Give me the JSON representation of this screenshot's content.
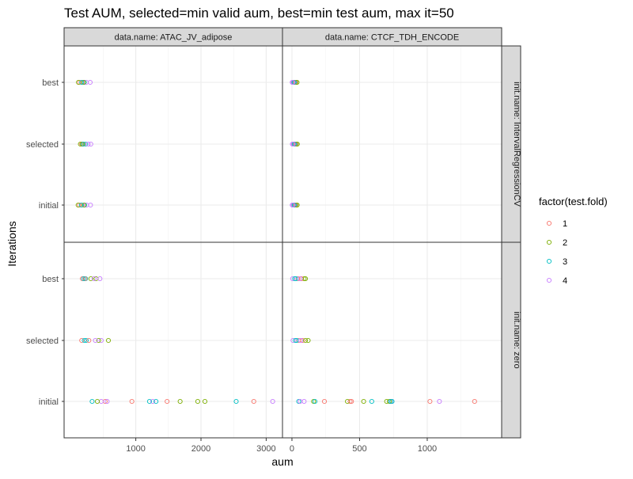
{
  "chart_data": {
    "type": "scatter",
    "title": "Test AUM, selected=min valid aum, best=min test aum, max it=50",
    "xlabel": "aum",
    "ylabel": "Iterations",
    "categories_y": [
      "initial",
      "selected",
      "best"
    ],
    "legend": {
      "title": "factor(test.fold)",
      "placement": "right",
      "items": [
        {
          "label": "1",
          "color": "#F8766D"
        },
        {
          "label": "2",
          "color": "#7CAE00"
        },
        {
          "label": "3",
          "color": "#00BFC4"
        },
        {
          "label": "4",
          "color": "#C77CFF"
        }
      ]
    },
    "grid": true,
    "columns": [
      {
        "label": "data.name: ATAC_JV_adipose",
        "xlim": [
          -100,
          3250
        ],
        "ticks": [
          1000,
          2000,
          3000
        ],
        "tick_labels": [
          "1000",
          "2000",
          "3000"
        ]
      },
      {
        "label": "data.name: CTCF_TDH_ENCODE",
        "xlim": [
          -70,
          1550
        ],
        "ticks": [
          0,
          500,
          1000
        ],
        "tick_labels": [
          "0",
          "500",
          "1000"
        ]
      }
    ],
    "rows": [
      {
        "label": "init.name: IntervalRegressionCV"
      },
      {
        "label": "init.name: zero"
      }
    ],
    "panels": [
      {
        "col": 0,
        "row": 0,
        "points": [
          {
            "y": "best",
            "fold": "1",
            "x": 140
          },
          {
            "y": "best",
            "fold": "2",
            "x": 120
          },
          {
            "y": "best",
            "fold": "3",
            "x": 210
          },
          {
            "y": "best",
            "fold": "4",
            "x": 240
          },
          {
            "y": "best",
            "fold": "1",
            "x": 180
          },
          {
            "y": "best",
            "fold": "2",
            "x": 200
          },
          {
            "y": "best",
            "fold": "3",
            "x": 170
          },
          {
            "y": "best",
            "fold": "4",
            "x": 300
          },
          {
            "y": "selected",
            "fold": "1",
            "x": 170
          },
          {
            "y": "selected",
            "fold": "2",
            "x": 150
          },
          {
            "y": "selected",
            "fold": "3",
            "x": 230
          },
          {
            "y": "selected",
            "fold": "4",
            "x": 270
          },
          {
            "y": "selected",
            "fold": "1",
            "x": 200
          },
          {
            "y": "selected",
            "fold": "2",
            "x": 180
          },
          {
            "y": "selected",
            "fold": "3",
            "x": 195
          },
          {
            "y": "selected",
            "fold": "4",
            "x": 310
          },
          {
            "y": "initial",
            "fold": "1",
            "x": 135
          },
          {
            "y": "initial",
            "fold": "2",
            "x": 115
          },
          {
            "y": "initial",
            "fold": "3",
            "x": 215
          },
          {
            "y": "initial",
            "fold": "4",
            "x": 245
          },
          {
            "y": "initial",
            "fold": "1",
            "x": 175
          },
          {
            "y": "initial",
            "fold": "2",
            "x": 205
          },
          {
            "y": "initial",
            "fold": "3",
            "x": 165
          },
          {
            "y": "initial",
            "fold": "4",
            "x": 305
          }
        ]
      },
      {
        "col": 1,
        "row": 0,
        "points": [
          {
            "y": "best",
            "fold": "1",
            "x": 10
          },
          {
            "y": "best",
            "fold": "2",
            "x": 30
          },
          {
            "y": "best",
            "fold": "3",
            "x": 20
          },
          {
            "y": "best",
            "fold": "4",
            "x": 2
          },
          {
            "y": "best",
            "fold": "1",
            "x": 25
          },
          {
            "y": "best",
            "fold": "2",
            "x": 38
          },
          {
            "y": "best",
            "fold": "3",
            "x": 15
          },
          {
            "y": "best",
            "fold": "4",
            "x": 8
          },
          {
            "y": "selected",
            "fold": "1",
            "x": 12
          },
          {
            "y": "selected",
            "fold": "2",
            "x": 32
          },
          {
            "y": "selected",
            "fold": "3",
            "x": 22
          },
          {
            "y": "selected",
            "fold": "4",
            "x": 3
          },
          {
            "y": "selected",
            "fold": "1",
            "x": 27
          },
          {
            "y": "selected",
            "fold": "2",
            "x": 40
          },
          {
            "y": "selected",
            "fold": "3",
            "x": 17
          },
          {
            "y": "selected",
            "fold": "4",
            "x": 10
          },
          {
            "y": "initial",
            "fold": "1",
            "x": 11
          },
          {
            "y": "initial",
            "fold": "2",
            "x": 31
          },
          {
            "y": "initial",
            "fold": "3",
            "x": 21
          },
          {
            "y": "initial",
            "fold": "4",
            "x": 2
          },
          {
            "y": "initial",
            "fold": "1",
            "x": 26
          },
          {
            "y": "initial",
            "fold": "2",
            "x": 39
          },
          {
            "y": "initial",
            "fold": "3",
            "x": 16
          },
          {
            "y": "initial",
            "fold": "4",
            "x": 9
          }
        ]
      },
      {
        "col": 0,
        "row": 1,
        "points": [
          {
            "y": "best",
            "fold": "1",
            "x": 180
          },
          {
            "y": "best",
            "fold": "2",
            "x": 390
          },
          {
            "y": "best",
            "fold": "3",
            "x": 230
          },
          {
            "y": "best",
            "fold": "4",
            "x": 450
          },
          {
            "y": "best",
            "fold": "1",
            "x": 220
          },
          {
            "y": "best",
            "fold": "2",
            "x": 310
          },
          {
            "y": "best",
            "fold": "3",
            "x": 200
          },
          {
            "y": "best",
            "fold": "4",
            "x": 360
          },
          {
            "y": "selected",
            "fold": "1",
            "x": 170
          },
          {
            "y": "selected",
            "fold": "2",
            "x": 580
          },
          {
            "y": "selected",
            "fold": "3",
            "x": 240
          },
          {
            "y": "selected",
            "fold": "4",
            "x": 470
          },
          {
            "y": "selected",
            "fold": "1",
            "x": 280
          },
          {
            "y": "selected",
            "fold": "2",
            "x": 430
          },
          {
            "y": "selected",
            "fold": "3",
            "x": 210
          },
          {
            "y": "selected",
            "fold": "4",
            "x": 380
          },
          {
            "y": "initial",
            "fold": "1",
            "x": 530
          },
          {
            "y": "initial",
            "fold": "2",
            "x": 1680
          },
          {
            "y": "initial",
            "fold": "3",
            "x": 2540
          },
          {
            "y": "initial",
            "fold": "4",
            "x": 3100
          },
          {
            "y": "initial",
            "fold": "1",
            "x": 940
          },
          {
            "y": "initial",
            "fold": "2",
            "x": 1950
          },
          {
            "y": "initial",
            "fold": "3",
            "x": 330
          },
          {
            "y": "initial",
            "fold": "4",
            "x": 1260
          },
          {
            "y": "initial",
            "fold": "1",
            "x": 1480
          },
          {
            "y": "initial",
            "fold": "2",
            "x": 2060
          },
          {
            "y": "initial",
            "fold": "3",
            "x": 1210
          },
          {
            "y": "initial",
            "fold": "4",
            "x": 470
          },
          {
            "y": "initial",
            "fold": "1",
            "x": 2810
          },
          {
            "y": "initial",
            "fold": "2",
            "x": 410
          },
          {
            "y": "initial",
            "fold": "3",
            "x": 1310
          },
          {
            "y": "initial",
            "fold": "4",
            "x": 560
          }
        ]
      },
      {
        "col": 1,
        "row": 1,
        "points": [
          {
            "y": "best",
            "fold": "1",
            "x": 45
          },
          {
            "y": "best",
            "fold": "2",
            "x": 90
          },
          {
            "y": "best",
            "fold": "3",
            "x": 30
          },
          {
            "y": "best",
            "fold": "4",
            "x": 5
          },
          {
            "y": "best",
            "fold": "1",
            "x": 70
          },
          {
            "y": "best",
            "fold": "2",
            "x": 100
          },
          {
            "y": "best",
            "fold": "3",
            "x": 20
          },
          {
            "y": "best",
            "fold": "4",
            "x": 60
          },
          {
            "y": "selected",
            "fold": "1",
            "x": 50
          },
          {
            "y": "selected",
            "fold": "2",
            "x": 120
          },
          {
            "y": "selected",
            "fold": "3",
            "x": 35
          },
          {
            "y": "selected",
            "fold": "4",
            "x": 8
          },
          {
            "y": "selected",
            "fold": "1",
            "x": 80
          },
          {
            "y": "selected",
            "fold": "2",
            "x": 100
          },
          {
            "y": "selected",
            "fold": "3",
            "x": 25
          },
          {
            "y": "selected",
            "fold": "4",
            "x": 65
          },
          {
            "y": "initial",
            "fold": "1",
            "x": 240
          },
          {
            "y": "initial",
            "fold": "2",
            "x": 160
          },
          {
            "y": "initial",
            "fold": "3",
            "x": 590
          },
          {
            "y": "initial",
            "fold": "4",
            "x": 90
          },
          {
            "y": "initial",
            "fold": "1",
            "x": 430
          },
          {
            "y": "initial",
            "fold": "2",
            "x": 410
          },
          {
            "y": "initial",
            "fold": "3",
            "x": 170
          },
          {
            "y": "initial",
            "fold": "4",
            "x": 740
          },
          {
            "y": "initial",
            "fold": "1",
            "x": 440
          },
          {
            "y": "initial",
            "fold": "2",
            "x": 530
          },
          {
            "y": "initial",
            "fold": "3",
            "x": 740
          },
          {
            "y": "initial",
            "fold": "4",
            "x": 1090
          },
          {
            "y": "initial",
            "fold": "1",
            "x": 1020
          },
          {
            "y": "initial",
            "fold": "2",
            "x": 700
          },
          {
            "y": "initial",
            "fold": "3",
            "x": 50
          },
          {
            "y": "initial",
            "fold": "4",
            "x": 730
          },
          {
            "y": "initial",
            "fold": "1",
            "x": 1350
          },
          {
            "y": "initial",
            "fold": "2",
            "x": 720
          },
          {
            "y": "initial",
            "fold": "3",
            "x": 730
          },
          {
            "y": "initial",
            "fold": "4",
            "x": 60
          }
        ]
      }
    ]
  }
}
